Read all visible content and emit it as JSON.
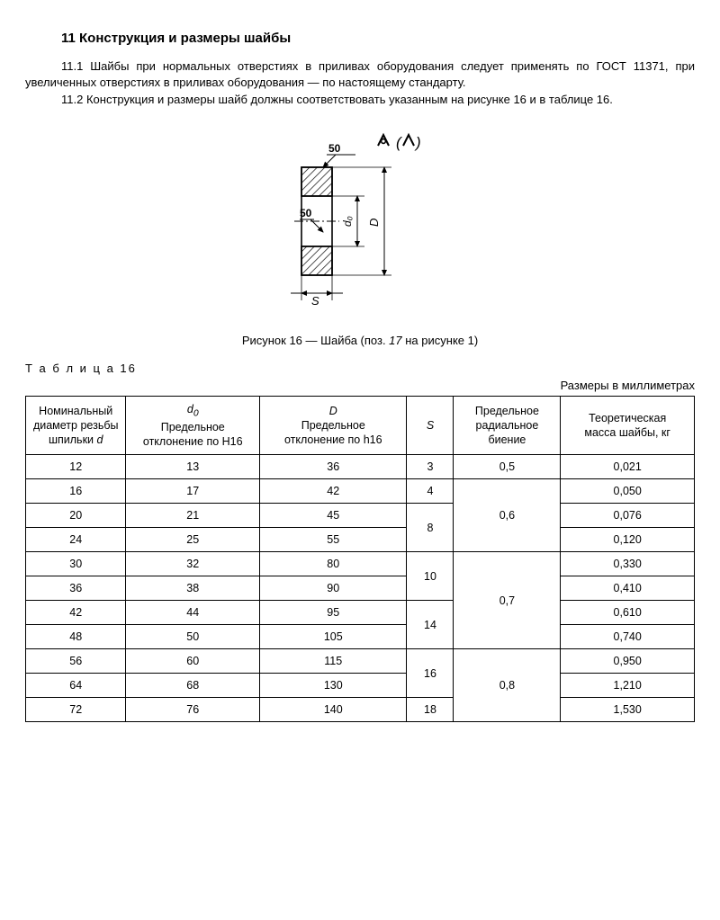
{
  "section": {
    "title": "11 Конструкция и размеры шайбы",
    "p1_num": "11.1",
    "p1": "Шайбы при нормальных отверстиях в приливах оборудования следует применять по ГОСТ 11371, при увеличенных отверстиях в приливах оборудования — по настоящему стандарту.",
    "p2_num": "11.2",
    "p2": "Конструкция и размеры шайб должны соответствовать указанным на рисунке 16 и в таб­лице 16."
  },
  "figure": {
    "dim1": "50",
    "dim2": "50",
    "lbl_d0": "d₀",
    "lbl_D": "D",
    "lbl_S": "S",
    "caption_pre": "Рисунок 16 — Шайба (поз. ",
    "caption_it": "17",
    "caption_post": " на рисунке 1)"
  },
  "table": {
    "label": "Т а б л и ц а  16",
    "units": "Размеры в миллиметрах",
    "headers": {
      "col1_l1": "Номинальный",
      "col1_l2": "диаметр резьбы",
      "col1_l3": "шпильки ",
      "col1_l3_it": "d",
      "col2_sym": "d",
      "col2_sub": "0",
      "col2_l2": "Предельное",
      "col2_l3": "отклонение по H16",
      "col3_sym": "D",
      "col3_l2": "Предельное",
      "col3_l3": "отклонение по h16",
      "col4": "S",
      "col5_l1": "Предельное",
      "col5_l2": "радиальное",
      "col5_l3": "биение",
      "col6_l1": "Теоретическая",
      "col6_l2": "масса шайбы, кг"
    },
    "rows": [
      {
        "d": "12",
        "d0": "13",
        "D": "36",
        "S": "3",
        "runout": "0,5",
        "mass": "0,021"
      },
      {
        "d": "16",
        "d0": "17",
        "D": "42",
        "S": "4",
        "runout": "0,6",
        "mass": "0,050"
      },
      {
        "d": "20",
        "d0": "21",
        "D": "45",
        "S": "8",
        "runout": null,
        "mass": "0,076"
      },
      {
        "d": "24",
        "d0": "25",
        "D": "55",
        "S": null,
        "runout": null,
        "mass": "0,120"
      },
      {
        "d": "30",
        "d0": "32",
        "D": "80",
        "S": "10",
        "runout": "0,7",
        "mass": "0,330"
      },
      {
        "d": "36",
        "d0": "38",
        "D": "90",
        "S": null,
        "runout": null,
        "mass": "0,410"
      },
      {
        "d": "42",
        "d0": "44",
        "D": "95",
        "S": "14",
        "runout": null,
        "mass": "0,610"
      },
      {
        "d": "48",
        "d0": "50",
        "D": "105",
        "S": null,
        "runout": null,
        "mass": "0,740"
      },
      {
        "d": "56",
        "d0": "60",
        "D": "115",
        "S": "16",
        "runout": "0,8",
        "mass": "0,950"
      },
      {
        "d": "64",
        "d0": "68",
        "D": "130",
        "S": null,
        "runout": null,
        "mass": "1,210"
      },
      {
        "d": "72",
        "d0": "76",
        "D": "140",
        "S": "18",
        "runout": null,
        "mass": "1,530"
      }
    ],
    "col_widths": [
      "15%",
      "20%",
      "22%",
      "7%",
      "16%",
      "20%"
    ]
  },
  "colors": {
    "hatch": "#000000",
    "bg": "#ffffff"
  }
}
